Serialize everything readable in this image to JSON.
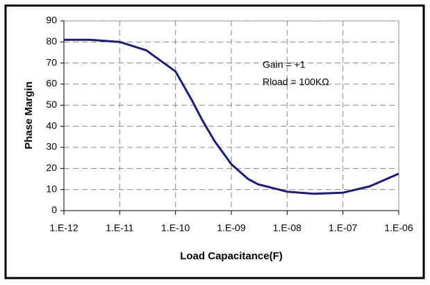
{
  "chart_data": {
    "type": "line",
    "x_label": "Load Capacitance(F)",
    "y_label": "Phase Margin",
    "annotations": [
      "Gain = +1",
      "Rload = 100KΩ"
    ],
    "x": [
      1e-12,
      3e-12,
      1e-11,
      3e-11,
      1e-10,
      2e-10,
      3e-10,
      5e-10,
      1e-09,
      2e-09,
      3e-09,
      1e-08,
      3e-08,
      1e-07,
      3e-07,
      1e-06
    ],
    "series": [
      {
        "name": "Phase Margin",
        "color": "#1c1c78",
        "values": [
          81,
          81,
          80,
          76,
          66,
          52,
          43,
          33,
          22,
          15,
          12.5,
          9,
          8,
          8.5,
          11.5,
          17.5
        ]
      }
    ],
    "xscale": "log",
    "xlim": [
      1e-12,
      1e-06
    ],
    "xticks": [
      {
        "value": 1e-12,
        "label": "1.E-12"
      },
      {
        "value": 1e-11,
        "label": "1.E-11"
      },
      {
        "value": 1e-10,
        "label": "1.E-10"
      },
      {
        "value": 1e-09,
        "label": "1.E-09"
      },
      {
        "value": 1e-08,
        "label": "1.E-08"
      },
      {
        "value": 1e-07,
        "label": "1.E-07"
      },
      {
        "value": 1e-06,
        "label": "1.E-06"
      }
    ],
    "ylim": [
      0,
      90
    ],
    "yticks": [
      0,
      10,
      20,
      30,
      40,
      50,
      60,
      70,
      80,
      90
    ],
    "grid": true
  }
}
